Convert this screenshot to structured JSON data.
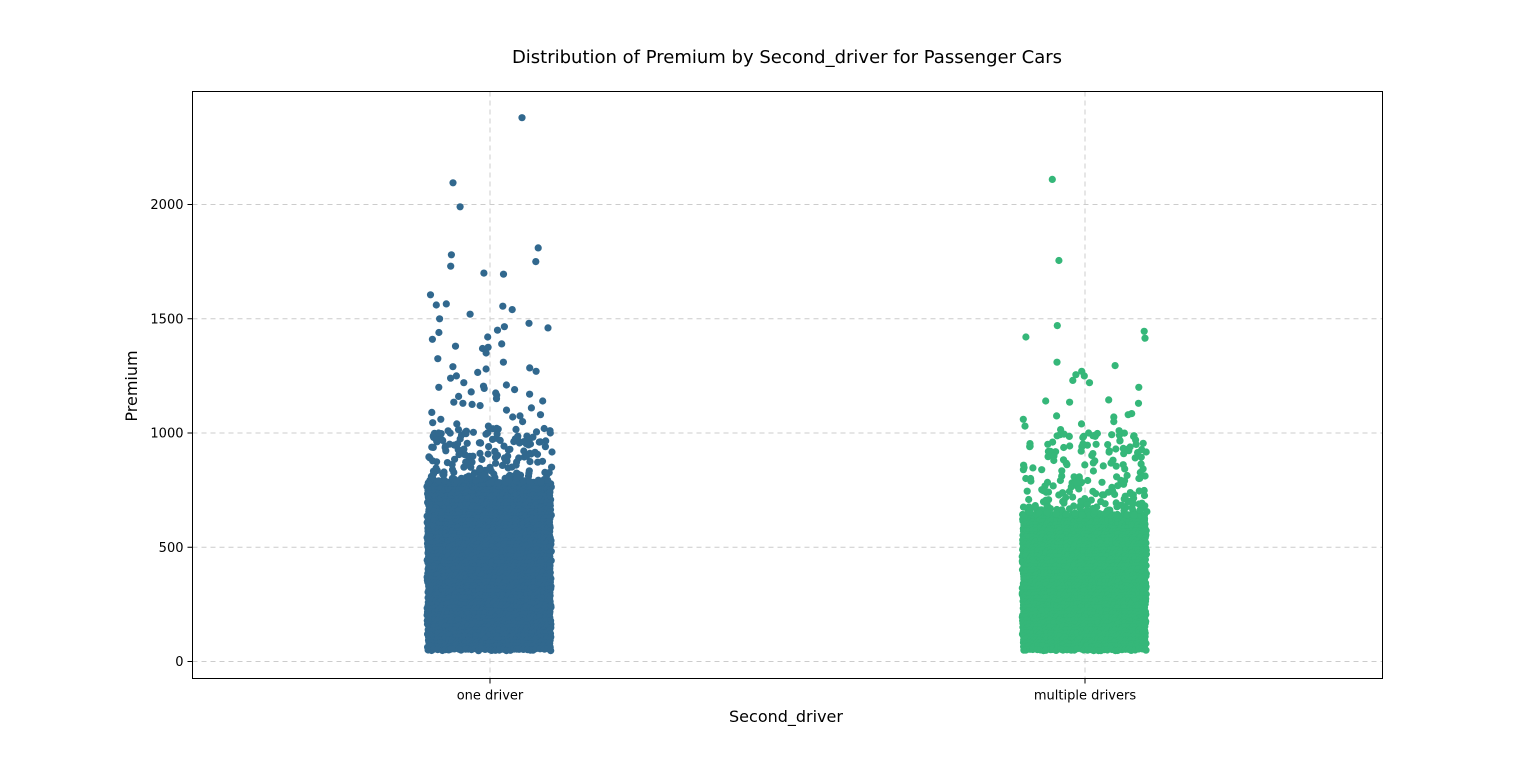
{
  "chart_data": {
    "type": "scatter",
    "subtype": "strip",
    "title": "Distribution of Premium by Second_driver for Passenger Cars",
    "xlabel": "Second_driver",
    "ylabel": "Premium",
    "ylim": [
      -70,
      2480
    ],
    "yticks": [
      0,
      500,
      1000,
      1500,
      2000
    ],
    "grid": true,
    "categories": [
      "one driver",
      "multiple drivers"
    ],
    "series": [
      {
        "category": "one driver",
        "color": "#31688e",
        "dense_range": [
          50,
          780
        ],
        "outliers": [
          2380,
          2095,
          1990,
          1810,
          1780,
          1750,
          1730,
          1700,
          1695,
          1605,
          1565,
          1560,
          1555,
          1540,
          1520,
          1500,
          1480,
          1465,
          1460,
          1450,
          1440,
          1420,
          1410,
          1390,
          1380,
          1375,
          1370,
          1350,
          1325,
          1310,
          1290,
          1285,
          1280,
          1270,
          1265,
          1250,
          1240,
          1220,
          1210,
          1205,
          1200,
          1195,
          1190,
          1180,
          1175,
          1170,
          1165,
          1160,
          1150,
          1140,
          1135,
          1130,
          1125,
          1120,
          1110,
          1100,
          1090,
          1080,
          1075,
          1070,
          1060,
          1050,
          1045,
          1040,
          1030,
          1020,
          1015,
          1010,
          1005,
          1000
        ]
      },
      {
        "category": "multiple drivers",
        "color": "#35b779",
        "dense_range": [
          50,
          640
        ],
        "outliers": [
          2110,
          1755,
          1470,
          1445,
          1420,
          1415,
          1310,
          1295,
          1270,
          1255,
          1250,
          1230,
          1220,
          1200,
          1145,
          1140,
          1135,
          1130,
          1085,
          1080,
          1075,
          1070,
          1060,
          1050,
          1040,
          1030,
          1015,
          1010,
          1000,
          995,
          990,
          985,
          970,
          960,
          950,
          940,
          930,
          920,
          910,
          900
        ]
      }
    ]
  }
}
